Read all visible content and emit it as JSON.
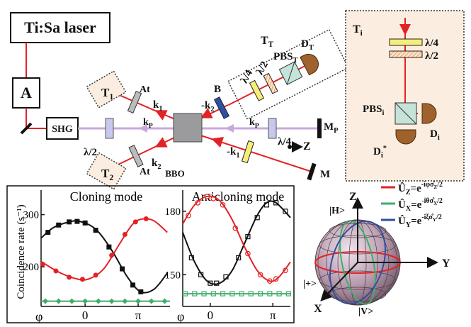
{
  "diagram": {
    "labels": [
      {
        "t": "Ti:Sa laser"
      },
      {
        "t": "A"
      },
      {
        "t": "SHG"
      },
      {
        "t": "λ/2"
      },
      {
        "t": "T",
        "s": "1"
      },
      {
        "t": "At"
      },
      {
        "t": "k",
        "s": "1"
      },
      {
        "t": "k",
        "s": "P"
      },
      {
        "t": "k",
        "s": "2"
      },
      {
        "t": "BBO"
      },
      {
        "t": "At"
      },
      {
        "t": "T",
        "s": "2"
      },
      {
        "t": "-k",
        "s": "2"
      },
      {
        "t": "B"
      },
      {
        "t": "k",
        "s": "P"
      },
      {
        "t": "λ/4"
      },
      {
        "t": "-k",
        "s": "1"
      },
      {
        "t": "M",
        "s": "P"
      },
      {
        "t": "Z"
      },
      {
        "t": "M"
      },
      {
        "t": "T",
        "s": "T"
      },
      {
        "t": "λ/4"
      },
      {
        "t": "λ/2"
      },
      {
        "t": "PBS",
        "s": "T"
      },
      {
        "t": "D",
        "s": "T"
      },
      {
        "t": "T",
        "s": "i"
      },
      {
        "t": "λ/4"
      },
      {
        "t": "λ/2"
      },
      {
        "t": "PBS",
        "s": "i"
      },
      {
        "t": "D",
        "s": "i"
      },
      {
        "t": "D",
        "s": "i",
        "p": "*"
      }
    ]
  },
  "chart_data": [
    {
      "type": "scatter",
      "title": "Cloning mode",
      "ylabel": "Coincidence rate (s⁻¹)",
      "xlabel": "φ",
      "xlim": [
        -0.83,
        1.6
      ],
      "ylim": [
        124,
        347
      ],
      "xticks": [
        {
          "value": 0,
          "label": "0"
        },
        {
          "value": 1,
          "label": "π"
        }
      ],
      "yticks": [
        200,
        300
      ],
      "series": [
        {
          "marker": "square",
          "color": "#111111",
          "x": [
            -0.7,
            -0.5,
            -0.3,
            -0.15,
            0,
            0.2,
            0.45,
            0.7,
            0.9,
            1.05
          ],
          "values": [
            266,
            280,
            286,
            287,
            284,
            270,
            238,
            196,
            165,
            152
          ]
        },
        {
          "marker": "line",
          "color": "#111111",
          "x": [
            -0.83,
            -0.6,
            -0.3,
            -0.1,
            0.2,
            0.5,
            0.8,
            1.05,
            1.3,
            1.55
          ],
          "values": [
            255,
            275,
            286,
            287,
            272,
            232,
            180,
            152,
            157,
            188
          ]
        },
        {
          "marker": "circle",
          "color": "#e32226",
          "x": [
            -0.8,
            -0.55,
            -0.3,
            -0.05,
            0.2,
            0.5,
            0.75,
            0.95,
            1.15
          ],
          "values": [
            205,
            192,
            180,
            176,
            184,
            222,
            262,
            286,
            292
          ]
        },
        {
          "marker": "line",
          "color": "#e32226",
          "x": [
            -0.83,
            -0.5,
            -0.2,
            0.05,
            0.35,
            0.65,
            0.9,
            1.1,
            1.3,
            1.55
          ],
          "values": [
            210,
            190,
            178,
            176,
            196,
            244,
            282,
            292,
            288,
            266
          ]
        },
        {
          "marker": "diamond",
          "color": "#3fae6a",
          "x": [
            -0.75,
            -0.5,
            -0.25,
            0,
            0.25,
            0.5,
            0.75,
            1,
            1.25,
            1.5
          ],
          "values": [
            134,
            134,
            134,
            134,
            134,
            134,
            134,
            134,
            134,
            134
          ]
        },
        {
          "marker": "line",
          "color": "#3fae6a",
          "x": [
            -0.83,
            1.6
          ],
          "values": [
            134,
            134
          ]
        }
      ]
    },
    {
      "type": "scatter",
      "title": "Anticloning mode",
      "xlabel": "φ",
      "xlim": [
        -0.44,
        1.28
      ],
      "ylim": [
        135,
        190
      ],
      "xticks": [
        {
          "value": 0,
          "label": "0"
        },
        {
          "value": 1,
          "label": "π"
        }
      ],
      "yticks": [
        150,
        180
      ],
      "series": [
        {
          "marker": "open-square",
          "color": "#111111",
          "x": [
            -0.3,
            -0.15,
            0,
            0.1,
            0.25,
            0.45,
            0.6,
            0.75,
            0.9,
            1.05,
            1.2
          ],
          "values": [
            158,
            150,
            146,
            146,
            149,
            158,
            168,
            177,
            183,
            184,
            180
          ]
        },
        {
          "marker": "line",
          "color": "#111111",
          "x": [
            -0.44,
            -0.25,
            -0.05,
            0.15,
            0.35,
            0.55,
            0.75,
            0.9,
            1.05,
            1.28
          ],
          "values": [
            170,
            156,
            147,
            146,
            152,
            165,
            178,
            184,
            184,
            177
          ]
        },
        {
          "marker": "open-circle",
          "color": "#e32226",
          "x": [
            -0.35,
            -0.2,
            -0.05,
            0.05,
            0.2,
            0.4,
            0.6,
            0.8,
            0.95,
            1.05,
            1.2
          ],
          "values": [
            178,
            184,
            187,
            186,
            183,
            172,
            160,
            150,
            147,
            148,
            152
          ]
        },
        {
          "marker": "line",
          "color": "#e32226",
          "x": [
            -0.44,
            -0.25,
            -0.05,
            0.15,
            0.35,
            0.55,
            0.75,
            0.95,
            1.1,
            1.28
          ],
          "values": [
            174,
            183,
            187,
            185,
            176,
            163,
            152,
            147,
            149,
            156
          ]
        },
        {
          "marker": "open-square",
          "color": "#3fae6a",
          "x": [
            -0.4,
            -0.25,
            -0.1,
            0.05,
            0.2,
            0.35,
            0.5,
            0.65,
            0.8,
            0.95,
            1.1,
            1.25
          ],
          "values": [
            141,
            141,
            141,
            141,
            141,
            141,
            141,
            141,
            141,
            141,
            141,
            141
          ]
        },
        {
          "marker": "line",
          "color": "#3fae6a",
          "x": [
            -0.44,
            1.28
          ],
          "values": [
            141,
            141
          ]
        }
      ]
    }
  ],
  "bloch": {
    "legend": [
      {
        "op": "Û",
        "sub": "Z",
        "eq": "=e",
        "exp": "-iφσ̂",
        "exp_sub": "Z",
        "exp_end": "/2",
        "color": "#e32226"
      },
      {
        "op": "Û",
        "sub": "X",
        "eq": "=e",
        "exp": "-iθσ̂",
        "exp_sub": "X",
        "exp_end": "/2",
        "color": "#3fae6a"
      },
      {
        "op": "Û",
        "sub": "Y",
        "eq": "=e",
        "exp": "-iξσ̂",
        "exp_sub": "Y",
        "exp_end": "/2",
        "color": "#2f4fa0"
      }
    ],
    "axes": {
      "z": "Z",
      "y": "Y",
      "x": "X",
      "h": "|H>",
      "v": "|V>",
      "plus": "|+>"
    }
  }
}
